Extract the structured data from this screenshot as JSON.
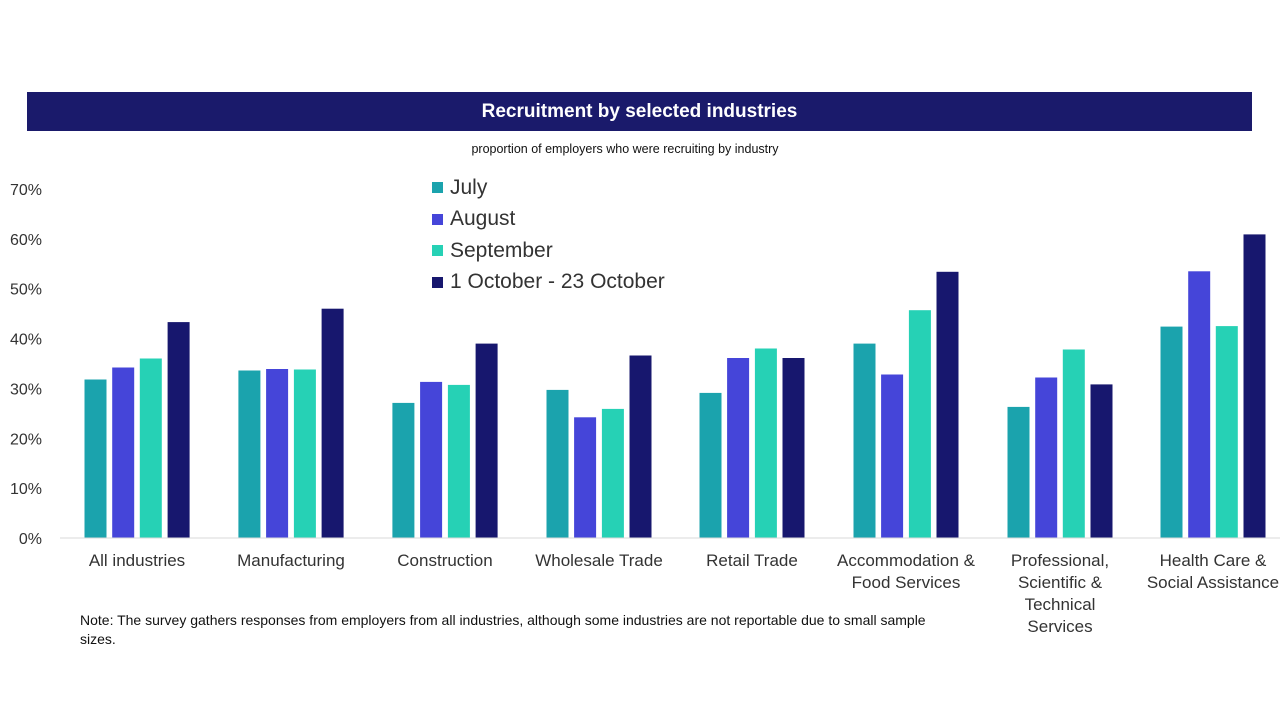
{
  "header": {
    "title": "Recruitment by selected industries"
  },
  "subtitle": "proportion of employers who were recruiting by industry",
  "note": "Note: The survey gathers responses from employers from all industries, although some industries are not reportable due to small sample sizes.",
  "chart_data": {
    "type": "bar",
    "title": "Recruitment by selected industries",
    "subtitle": "proportion of employers who were recruiting by industry",
    "xlabel": "",
    "ylabel": "",
    "ylim": [
      0,
      70
    ],
    "yticks": [
      "0%",
      "10%",
      "20%",
      "30%",
      "40%",
      "50%",
      "60%",
      "70%"
    ],
    "grid": false,
    "legend_position": "top-center",
    "categories": [
      [
        "All industries"
      ],
      [
        "Manufacturing"
      ],
      [
        "Construction"
      ],
      [
        "Wholesale Trade"
      ],
      [
        "Retail Trade"
      ],
      [
        "Accommodation &",
        "Food Services"
      ],
      [
        "Professional,",
        "Scientific &",
        "Technical",
        "Services"
      ],
      [
        "Health Care &",
        "Social Assistance"
      ]
    ],
    "series": [
      {
        "name": "July",
        "color": "#1ba3ad",
        "values": [
          31.8,
          33.6,
          27.1,
          29.7,
          29.1,
          39.0,
          26.3,
          42.4
        ]
      },
      {
        "name": "August",
        "color": "#4545d9",
        "values": [
          34.2,
          33.9,
          31.3,
          24.2,
          36.1,
          32.8,
          32.2,
          53.5
        ]
      },
      {
        "name": "September",
        "color": "#26d1b5",
        "values": [
          36.0,
          33.8,
          30.7,
          25.9,
          38.0,
          45.7,
          37.8,
          42.5
        ]
      },
      {
        "name": "1 October - 23 October",
        "color": "#17176e",
        "values": [
          43.3,
          46.0,
          39.0,
          36.6,
          36.1,
          53.4,
          30.8,
          60.9
        ]
      }
    ]
  }
}
